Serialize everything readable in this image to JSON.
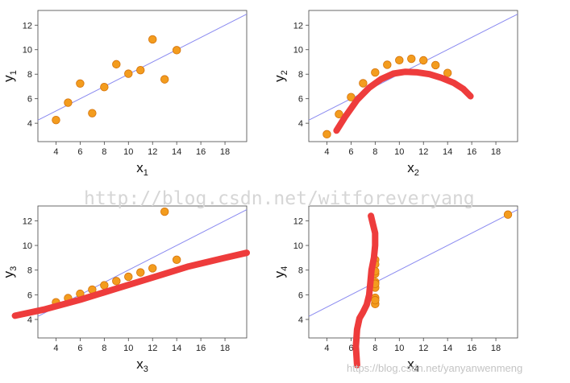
{
  "watermarks": {
    "center": "http://blog.csdn.net/witforeveryang",
    "corner": "https://blog.csdn.net/yanyanwenmeng"
  },
  "colors": {
    "points": "#f39c1e",
    "points_edge": "#d4720a",
    "regression_line": "#8a8af0",
    "marker_scribble": "#ee3c3c"
  },
  "chart_data": [
    {
      "type": "scatter",
      "title": "",
      "xlabel": "x",
      "xlabel_sub": "1",
      "ylabel": "y",
      "ylabel_sub": "1",
      "xlim": [
        2.5,
        19.8
      ],
      "ylim": [
        2.5,
        13.2
      ],
      "xticks": [
        4,
        6,
        8,
        10,
        12,
        14,
        16,
        18
      ],
      "yticks": [
        4,
        6,
        8,
        10,
        12
      ],
      "grid": false,
      "x": [
        10,
        8,
        13,
        9,
        11,
        14,
        6,
        4,
        12,
        7,
        5
      ],
      "y": [
        8.04,
        6.95,
        7.58,
        8.81,
        8.33,
        9.96,
        7.24,
        4.26,
        10.84,
        4.82,
        5.68
      ],
      "fit_line": {
        "intercept": 3.0,
        "slope": 0.5
      },
      "annotations": []
    },
    {
      "type": "scatter",
      "title": "",
      "xlabel": "x",
      "xlabel_sub": "2",
      "ylabel": "y",
      "ylabel_sub": "2",
      "xlim": [
        2.5,
        19.8
      ],
      "ylim": [
        2.5,
        13.2
      ],
      "xticks": [
        4,
        6,
        8,
        10,
        12,
        14,
        16,
        18
      ],
      "yticks": [
        4,
        6,
        8,
        10,
        12
      ],
      "grid": false,
      "x": [
        10,
        8,
        13,
        9,
        11,
        14,
        6,
        4,
        12,
        7,
        5
      ],
      "y": [
        9.14,
        8.14,
        8.74,
        8.77,
        9.26,
        8.1,
        6.13,
        3.1,
        9.13,
        7.26,
        4.74
      ],
      "fit_line": {
        "intercept": 3.0,
        "slope": 0.5
      },
      "annotations": [
        {
          "type": "hand-drawn-curve",
          "points": [
            [
              4.8,
              3.4
            ],
            [
              5.5,
              4.5
            ],
            [
              6.5,
              5.9
            ],
            [
              7.5,
              6.9
            ],
            [
              8.5,
              7.6
            ],
            [
              9.5,
              8.05
            ],
            [
              10.5,
              8.2
            ],
            [
              11.5,
              8.15
            ],
            [
              12.5,
              8.0
            ],
            [
              13.5,
              7.7
            ],
            [
              14.5,
              7.3
            ],
            [
              15.3,
              6.8
            ],
            [
              15.9,
              6.2
            ]
          ]
        }
      ]
    },
    {
      "type": "scatter",
      "title": "",
      "xlabel": "x",
      "xlabel_sub": "3",
      "ylabel": "y",
      "ylabel_sub": "3",
      "xlim": [
        2.5,
        19.8
      ],
      "ylim": [
        2.5,
        13.2
      ],
      "xticks": [
        4,
        6,
        8,
        10,
        12,
        14,
        16,
        18
      ],
      "yticks": [
        4,
        6,
        8,
        10,
        12
      ],
      "grid": false,
      "x": [
        10,
        8,
        13,
        9,
        11,
        14,
        6,
        4,
        12,
        7,
        5
      ],
      "y": [
        7.46,
        6.77,
        12.74,
        7.11,
        7.81,
        8.84,
        6.08,
        5.39,
        8.15,
        6.42,
        5.73
      ],
      "fit_line": {
        "intercept": 3.0,
        "slope": 0.5
      },
      "annotations": [
        {
          "type": "hand-drawn-line",
          "points": [
            [
              0.6,
              4.3
            ],
            [
              3.0,
              4.8
            ],
            [
              6.0,
              5.6
            ],
            [
              9.0,
              6.5
            ],
            [
              12.0,
              7.4
            ],
            [
              15.0,
              8.3
            ],
            [
              18.0,
              9.0
            ],
            [
              19.8,
              9.4
            ]
          ]
        }
      ]
    },
    {
      "type": "scatter",
      "title": "",
      "xlabel": "x",
      "xlabel_sub": "4",
      "ylabel": "y",
      "ylabel_sub": "4",
      "xlim": [
        2.5,
        19.8
      ],
      "ylim": [
        2.5,
        13.2
      ],
      "xticks": [
        4,
        6,
        8,
        10,
        12,
        14,
        16,
        18
      ],
      "yticks": [
        4,
        6,
        8,
        10,
        12
      ],
      "grid": false,
      "x": [
        8,
        8,
        8,
        8,
        8,
        8,
        8,
        19,
        8,
        8,
        8
      ],
      "y": [
        6.58,
        5.76,
        7.71,
        8.84,
        8.47,
        7.04,
        5.25,
        12.5,
        5.56,
        7.91,
        6.89
      ],
      "fit_line": {
        "intercept": 3.0,
        "slope": 0.5
      },
      "annotations": [
        {
          "type": "hand-drawn-line",
          "points": [
            [
              7.65,
              12.4
            ],
            [
              7.8,
              11.8
            ],
            [
              8.0,
              11.0
            ],
            [
              8.0,
              10.0
            ],
            [
              7.9,
              9.0
            ],
            [
              7.7,
              8.0
            ],
            [
              7.6,
              7.0
            ],
            [
              7.5,
              6.0
            ],
            [
              7.3,
              5.2
            ],
            [
              7.0,
              4.6
            ],
            [
              6.7,
              4.1
            ],
            [
              6.5,
              3.2
            ],
            [
              6.4,
              1.8
            ],
            [
              6.5,
              0.3
            ]
          ]
        }
      ]
    }
  ]
}
